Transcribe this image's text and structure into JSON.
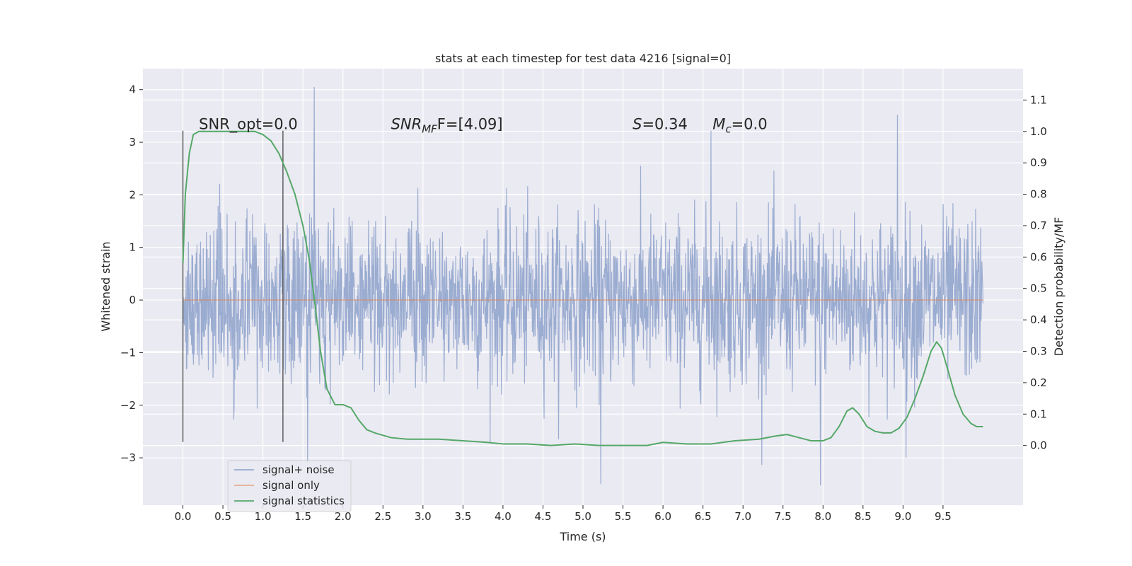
{
  "chart_data": {
    "type": "line",
    "title": "stats at each timestep for test data 4216 [signal=0]",
    "xlabel": "Time (s)",
    "ylabel": "Whitened strain",
    "y2label": "Detection probability/MF",
    "xlim": [
      -0.5,
      10.5
    ],
    "ylim": [
      -3.9,
      4.4
    ],
    "y2lim": [
      -0.19,
      1.2
    ],
    "x_ticks": [
      0.0,
      0.5,
      1.0,
      1.5,
      2.0,
      2.5,
      3.0,
      3.5,
      4.0,
      4.5,
      5.0,
      5.5,
      6.0,
      6.5,
      7.0,
      7.5,
      8.0,
      8.5,
      9.0,
      9.5
    ],
    "x_tick_labels": [
      "0.0",
      "0.5",
      "1.0",
      "1.5",
      "2.0",
      "2.5",
      "3.0",
      "3.5",
      "4.0",
      "4.5",
      "5.0",
      "5.5",
      "6.0",
      "6.5",
      "7.0",
      "7.5",
      "8.0",
      "8.5",
      "9.0",
      "9.5"
    ],
    "y_ticks": [
      -3,
      -2,
      -1,
      0,
      1,
      2,
      3,
      4
    ],
    "y_tick_labels": [
      "−3",
      "−2",
      "−1",
      "0",
      "1",
      "2",
      "3",
      "4"
    ],
    "y2_ticks": [
      0.0,
      0.1,
      0.2,
      0.3,
      0.4,
      0.5,
      0.6,
      0.7,
      0.8,
      0.9,
      1.0,
      1.1
    ],
    "y2_tick_labels": [
      "0.0",
      "0.1",
      "0.2",
      "0.3",
      "0.4",
      "0.5",
      "0.6",
      "0.7",
      "0.8",
      "0.9",
      "1.0",
      "1.1"
    ],
    "grid": true,
    "legend_position": "bottom-left",
    "annotations": [
      {
        "key": "snr_opt",
        "text": "SNR_opt=0.0",
        "x": 0.2,
        "y": 3.25
      },
      {
        "key": "snr_mf",
        "text_parts": [
          "SNR",
          "MF",
          "F=[4.09]"
        ],
        "x": 2.6,
        "y": 3.25
      },
      {
        "key": "s",
        "text_parts": [
          "S",
          "=0.34"
        ],
        "x": 5.62,
        "y": 3.25
      },
      {
        "key": "mc",
        "text_parts": [
          "M",
          "c",
          "=0.0"
        ],
        "x": 6.62,
        "y": 3.25
      }
    ],
    "vlines": [
      {
        "x": 0.0,
        "ymin": -2.7,
        "ymax": 3.22
      },
      {
        "x": 1.25,
        "ymin": -2.7,
        "ymax": 3.22
      }
    ],
    "series": [
      {
        "name": "signal+ noise",
        "color": "#97a9cf",
        "axis": "left",
        "x_range": [
          0.0,
          10.0
        ],
        "n_points": 2048,
        "typical_range": [
          -1.5,
          1.5
        ],
        "y_min": -3.5,
        "y_max": 4.05,
        "peaks": [
          {
            "x": 1.64,
            "y": 4.05
          },
          {
            "x": 8.93,
            "y": 3.52
          },
          {
            "x": 6.6,
            "y": 3.22
          },
          {
            "x": 5.22,
            "y": -3.5
          },
          {
            "x": 7.97,
            "y": -3.52
          },
          {
            "x": 1.56,
            "y": -3.1
          },
          {
            "x": 9.04,
            "y": -3.0
          }
        ]
      },
      {
        "name": "signal only",
        "color": "#dd8452",
        "axis": "left",
        "x": [
          0.0,
          10.0
        ],
        "y": [
          0.0,
          0.0
        ]
      },
      {
        "name": "signal statistics",
        "color": "#55a868",
        "axis": "right",
        "x": [
          0.0,
          0.03,
          0.08,
          0.13,
          0.2,
          0.3,
          0.45,
          0.6,
          0.75,
          0.9,
          1.0,
          1.1,
          1.2,
          1.3,
          1.4,
          1.5,
          1.58,
          1.65,
          1.72,
          1.8,
          1.9,
          2.0,
          2.1,
          2.2,
          2.3,
          2.4,
          2.6,
          2.8,
          3.0,
          3.2,
          3.5,
          3.8,
          4.0,
          4.3,
          4.6,
          4.9,
          5.2,
          5.5,
          5.8,
          6.0,
          6.3,
          6.6,
          6.9,
          7.2,
          7.4,
          7.55,
          7.7,
          7.85,
          8.0,
          8.1,
          8.2,
          8.3,
          8.37,
          8.45,
          8.55,
          8.65,
          8.75,
          8.85,
          8.95,
          9.05,
          9.15,
          9.25,
          9.35,
          9.42,
          9.48,
          9.55,
          9.65,
          9.75,
          9.85,
          9.92,
          10.0
        ],
        "y": [
          0.58,
          0.8,
          0.93,
          0.99,
          1.0,
          1.0,
          1.0,
          1.0,
          1.0,
          1.0,
          0.99,
          0.97,
          0.93,
          0.87,
          0.8,
          0.7,
          0.59,
          0.45,
          0.3,
          0.18,
          0.13,
          0.13,
          0.12,
          0.08,
          0.05,
          0.04,
          0.025,
          0.02,
          0.02,
          0.02,
          0.015,
          0.01,
          0.005,
          0.005,
          0.0,
          0.005,
          0.0,
          0.0,
          0.0,
          0.01,
          0.005,
          0.005,
          0.015,
          0.02,
          0.03,
          0.035,
          0.025,
          0.015,
          0.015,
          0.025,
          0.06,
          0.11,
          0.12,
          0.1,
          0.06,
          0.045,
          0.04,
          0.04,
          0.055,
          0.09,
          0.15,
          0.22,
          0.3,
          0.33,
          0.31,
          0.25,
          0.16,
          0.1,
          0.07,
          0.06,
          0.06
        ]
      }
    ]
  }
}
